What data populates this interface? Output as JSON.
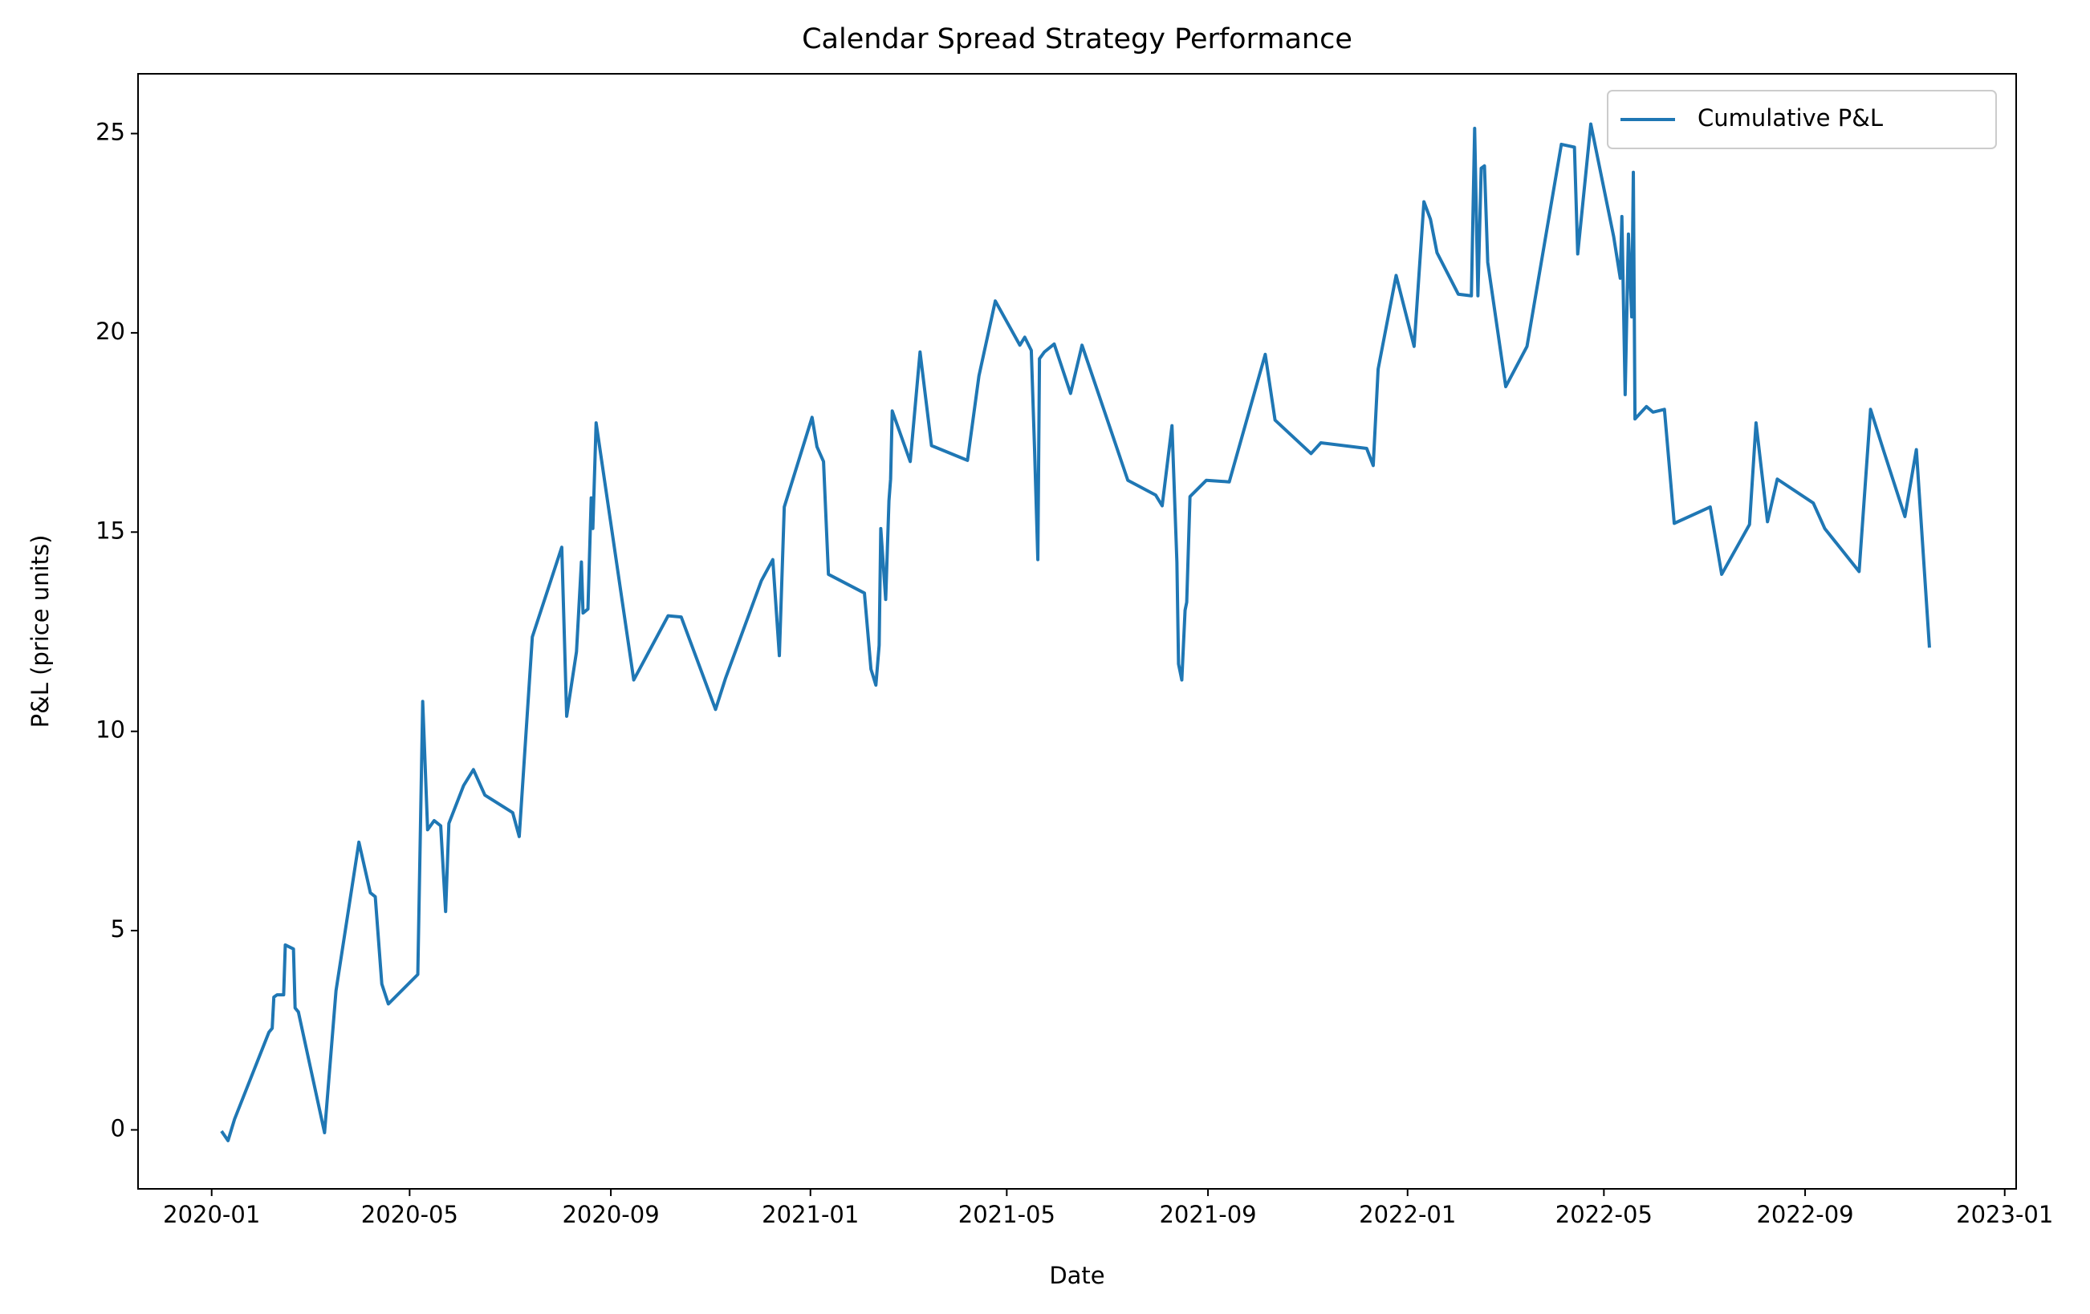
{
  "chart_data": {
    "type": "line",
    "title": "Calendar Spread Strategy Performance",
    "xlabel": "Date",
    "ylabel": "P&L (price units)",
    "x": [
      "2020-01-07",
      "2020-01-11",
      "2020-01-15",
      "2020-02-05",
      "2020-02-07",
      "2020-02-08",
      "2020-02-10",
      "2020-02-14",
      "2020-02-15",
      "2020-02-20",
      "2020-02-21",
      "2020-02-23",
      "2020-03-10",
      "2020-03-17",
      "2020-03-31",
      "2020-04-07",
      "2020-04-10",
      "2020-04-14",
      "2020-04-18",
      "2020-05-06",
      "2020-05-09",
      "2020-05-12",
      "2020-05-16",
      "2020-05-20",
      "2020-05-23",
      "2020-05-25",
      "2020-06-03",
      "2020-06-09",
      "2020-06-16",
      "2020-07-03",
      "2020-07-07",
      "2020-07-15",
      "2020-08-02",
      "2020-08-05",
      "2020-08-11",
      "2020-08-14",
      "2020-08-15",
      "2020-08-18",
      "2020-08-20",
      "2020-08-21",
      "2020-08-23",
      "2020-09-15",
      "2020-10-06",
      "2020-10-14",
      "2020-11-04",
      "2020-11-10",
      "2020-12-02",
      "2020-12-09",
      "2020-12-13",
      "2020-12-16",
      "2021-01-02",
      "2021-01-05",
      "2021-01-09",
      "2021-01-12",
      "2021-02-03",
      "2021-02-07",
      "2021-02-10",
      "2021-02-12",
      "2021-02-13",
      "2021-02-16",
      "2021-02-18",
      "2021-02-19",
      "2021-02-20",
      "2021-03-03",
      "2021-03-09",
      "2021-03-16",
      "2021-04-07",
      "2021-04-14",
      "2021-04-24",
      "2021-05-09",
      "2021-05-12",
      "2021-05-16",
      "2021-05-18",
      "2021-05-20",
      "2021-05-21",
      "2021-05-24",
      "2021-05-30",
      "2021-06-09",
      "2021-06-16",
      "2021-07-14",
      "2021-07-31",
      "2021-08-04",
      "2021-08-10",
      "2021-08-13",
      "2021-08-14",
      "2021-08-16",
      "2021-08-18",
      "2021-08-19",
      "2021-08-21",
      "2021-08-31",
      "2021-09-14",
      "2021-10-06",
      "2021-10-12",
      "2021-11-03",
      "2021-11-09",
      "2021-12-07",
      "2021-12-11",
      "2021-12-14",
      "2021-12-25",
      "2022-01-05",
      "2022-01-11",
      "2022-01-15",
      "2022-01-19",
      "2022-02-01",
      "2022-02-09",
      "2022-02-11",
      "2022-02-13",
      "2022-02-15",
      "2022-02-17",
      "2022-02-19",
      "2022-03-02",
      "2022-03-15",
      "2022-04-05",
      "2022-04-13",
      "2022-04-15",
      "2022-04-23",
      "2022-05-07",
      "2022-05-11",
      "2022-05-12",
      "2022-05-14",
      "2022-05-16",
      "2022-05-18",
      "2022-05-19",
      "2022-05-20",
      "2022-05-27",
      "2022-05-31",
      "2022-06-07",
      "2022-06-13",
      "2022-07-05",
      "2022-07-12",
      "2022-07-29",
      "2022-08-02",
      "2022-08-09",
      "2022-08-15",
      "2022-09-06",
      "2022-09-13",
      "2022-10-04",
      "2022-10-11",
      "2022-10-19",
      "2022-11-01",
      "2022-11-08",
      "2022-11-16"
    ],
    "series": [
      {
        "name": "Cumulative P&L",
        "color": "#1f77b4",
        "values": [
          -0.03,
          -0.27,
          0.27,
          2.45,
          2.55,
          3.33,
          3.39,
          3.39,
          4.64,
          4.54,
          3.06,
          2.96,
          -0.07,
          3.49,
          7.22,
          5.95,
          5.85,
          3.66,
          3.16,
          3.9,
          10.75,
          7.53,
          7.76,
          7.63,
          5.48,
          7.69,
          8.64,
          9.04,
          8.4,
          7.96,
          7.36,
          12.37,
          14.62,
          10.38,
          12.0,
          14.25,
          12.97,
          13.07,
          15.86,
          15.09,
          17.74,
          11.29,
          12.9,
          12.87,
          10.55,
          11.32,
          13.78,
          14.31,
          11.9,
          15.63,
          17.88,
          17.14,
          16.77,
          13.94,
          13.47,
          11.56,
          11.16,
          12.16,
          15.09,
          13.31,
          15.79,
          16.33,
          18.04,
          16.77,
          19.52,
          17.17,
          16.8,
          18.92,
          20.8,
          19.69,
          19.89,
          19.56,
          17.07,
          14.31,
          19.35,
          19.52,
          19.72,
          18.48,
          19.69,
          16.3,
          15.93,
          15.66,
          17.67,
          14.25,
          11.69,
          11.29,
          13.04,
          13.24,
          15.89,
          16.3,
          16.26,
          19.46,
          17.81,
          16.97,
          17.24,
          17.1,
          16.67,
          19.09,
          21.44,
          19.66,
          23.29,
          22.85,
          22.01,
          20.97,
          20.93,
          25.13,
          20.93,
          24.13,
          24.19,
          21.77,
          18.65,
          19.66,
          24.73,
          24.66,
          21.98,
          25.24,
          22.41,
          21.37,
          22.92,
          18.45,
          22.48,
          20.4,
          24.03,
          17.84,
          18.15,
          18.01,
          18.08,
          15.22,
          15.63,
          13.94,
          15.19,
          17.74,
          15.26,
          16.33,
          15.73,
          15.09,
          14.01,
          18.08,
          17.04,
          15.39,
          17.07,
          12.1
        ]
      }
    ],
    "xlim": [
      "2019-11-17",
      "2023-01-08"
    ],
    "xticks": [
      "2020-01",
      "2020-05",
      "2020-09",
      "2021-01",
      "2021-05",
      "2021-09",
      "2022-01",
      "2022-05",
      "2022-09",
      "2023-01"
    ],
    "ylim": [
      -1.48,
      26.5
    ],
    "yticks": [
      0,
      5,
      10,
      15,
      20,
      25
    ],
    "legend": "upper right"
  }
}
